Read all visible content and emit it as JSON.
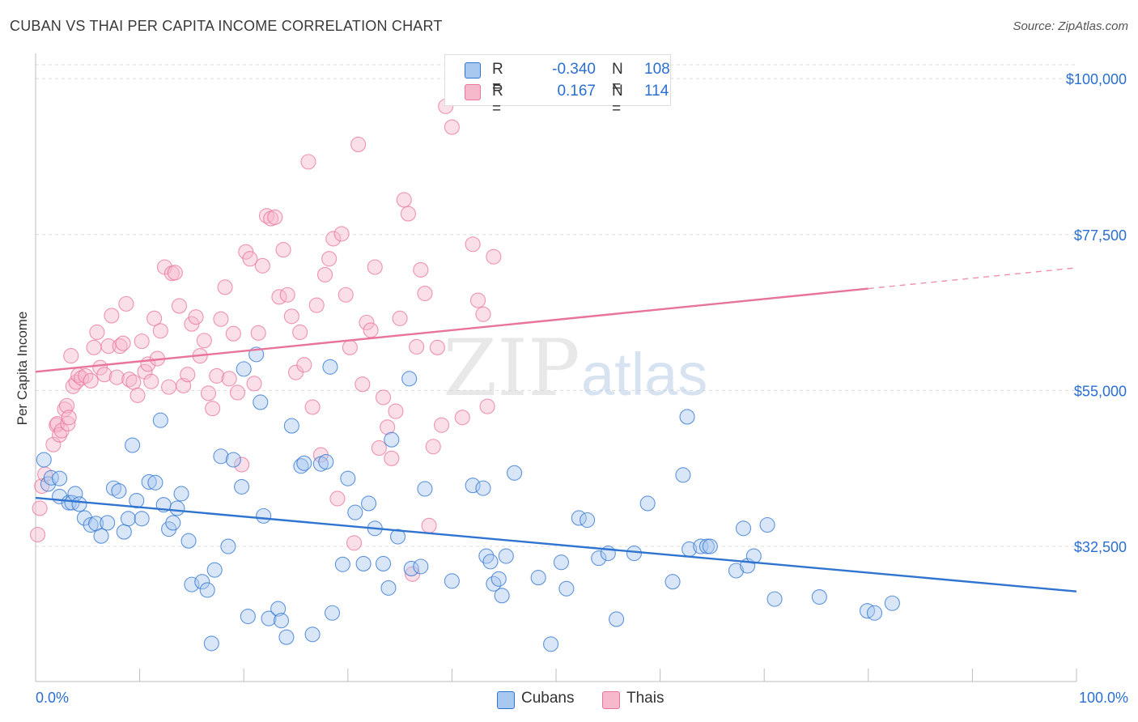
{
  "title": "CUBAN VS THAI PER CAPITA INCOME CORRELATION CHART",
  "source": "Source: ZipAtlas.com",
  "watermark": {
    "zip": "ZIP",
    "atlas": "atlas"
  },
  "legend": {
    "rows": [
      {
        "r_label": "R =",
        "r_value": "-0.340",
        "n_label": "N =",
        "n_value": "108",
        "color": "#a9c8f0"
      },
      {
        "r_label": "R =",
        "r_value": "0.167",
        "n_label": "N =",
        "n_value": "114",
        "color": "#f6b9cc"
      }
    ]
  },
  "bottom_legend": [
    {
      "label": "Cubans",
      "color": "#a9c8f0"
    },
    {
      "label": "Thais",
      "color": "#f6b9cc"
    }
  ],
  "chart_data": {
    "type": "scatter",
    "ylabel": "Per Capita Income",
    "xlim": [
      0,
      100
    ],
    "ylim": [
      13000,
      102000
    ],
    "x_tick_labels": {
      "min": "0.0%",
      "max": "100.0%"
    },
    "y_ticks": [
      {
        "value": 32500,
        "label": "$32,500"
      },
      {
        "value": 55000,
        "label": "$55,000"
      },
      {
        "value": 77500,
        "label": "$77,500"
      },
      {
        "value": 100000,
        "label": "$100,000"
      }
    ],
    "grid": "horizontal dashed",
    "series": [
      {
        "name": "Cubans",
        "color": "#2f74d0",
        "fill": "#a9c8f0",
        "trend": {
          "x0": 0,
          "y0": 39500,
          "x1": 100,
          "y1": 26000
        },
        "points": [
          [
            0.8,
            45000
          ],
          [
            1.2,
            41500
          ],
          [
            1.5,
            42400
          ],
          [
            2.3,
            39700
          ],
          [
            2.3,
            42300
          ],
          [
            3.2,
            38800
          ],
          [
            3.5,
            38800
          ],
          [
            3.8,
            40100
          ],
          [
            4.2,
            38600
          ],
          [
            4.7,
            36600
          ],
          [
            5.3,
            35600
          ],
          [
            5.8,
            35800
          ],
          [
            6.3,
            34000
          ],
          [
            6.9,
            35900
          ],
          [
            7.5,
            40900
          ],
          [
            8.0,
            40500
          ],
          [
            8.5,
            34600
          ],
          [
            8.9,
            36500
          ],
          [
            9.3,
            47100
          ],
          [
            9.7,
            39100
          ],
          [
            10.2,
            36500
          ],
          [
            10.9,
            41800
          ],
          [
            11.5,
            41700
          ],
          [
            12.0,
            50700
          ],
          [
            12.3,
            38500
          ],
          [
            12.8,
            35000
          ],
          [
            13.2,
            35900
          ],
          [
            13.6,
            38000
          ],
          [
            14.0,
            40100
          ],
          [
            14.7,
            33300
          ],
          [
            15.0,
            27000
          ],
          [
            16.0,
            27400
          ],
          [
            16.5,
            26200
          ],
          [
            16.9,
            18500
          ],
          [
            17.2,
            29100
          ],
          [
            17.8,
            45500
          ],
          [
            18.5,
            32500
          ],
          [
            19.0,
            45000
          ],
          [
            19.8,
            41100
          ],
          [
            20.0,
            58100
          ],
          [
            20.4,
            22400
          ],
          [
            21.2,
            60200
          ],
          [
            21.6,
            53300
          ],
          [
            21.9,
            36900
          ],
          [
            22.4,
            22100
          ],
          [
            23.3,
            23500
          ],
          [
            23.6,
            21800
          ],
          [
            24.1,
            19400
          ],
          [
            24.6,
            49900
          ],
          [
            25.5,
            44100
          ],
          [
            25.8,
            44500
          ],
          [
            26.6,
            19800
          ],
          [
            27.4,
            44400
          ],
          [
            27.9,
            44700
          ],
          [
            28.3,
            58400
          ],
          [
            28.5,
            22900
          ],
          [
            29.5,
            29900
          ],
          [
            30.0,
            42300
          ],
          [
            30.7,
            37400
          ],
          [
            31.5,
            30000
          ],
          [
            32.0,
            38700
          ],
          [
            32.6,
            35100
          ],
          [
            33.4,
            30000
          ],
          [
            33.9,
            26500
          ],
          [
            34.2,
            47900
          ],
          [
            34.8,
            33900
          ],
          [
            35.9,
            56700
          ],
          [
            36.1,
            29300
          ],
          [
            37.0,
            29600
          ],
          [
            37.4,
            40800
          ],
          [
            40.0,
            27500
          ],
          [
            42.0,
            41300
          ],
          [
            43.0,
            40900
          ],
          [
            43.3,
            31100
          ],
          [
            43.7,
            30300
          ],
          [
            44.0,
            27100
          ],
          [
            44.5,
            27800
          ],
          [
            44.8,
            25400
          ],
          [
            45.2,
            31100
          ],
          [
            46.0,
            43100
          ],
          [
            48.3,
            28000
          ],
          [
            49.5,
            18400
          ],
          [
            50.5,
            30200
          ],
          [
            51.0,
            26400
          ],
          [
            52.2,
            36600
          ],
          [
            53.0,
            36300
          ],
          [
            54.1,
            30800
          ],
          [
            55.0,
            31500
          ],
          [
            55.8,
            22000
          ],
          [
            57.5,
            31500
          ],
          [
            58.8,
            38700
          ],
          [
            61.2,
            27400
          ],
          [
            62.2,
            42800
          ],
          [
            62.6,
            51200
          ],
          [
            62.8,
            32100
          ],
          [
            63.9,
            32500
          ],
          [
            64.5,
            32500
          ],
          [
            64.8,
            32500
          ],
          [
            67.3,
            29000
          ],
          [
            68.0,
            35100
          ],
          [
            68.4,
            29700
          ],
          [
            69.0,
            31100
          ],
          [
            70.3,
            35600
          ],
          [
            71.0,
            24900
          ],
          [
            75.3,
            25200
          ],
          [
            79.9,
            23200
          ],
          [
            80.6,
            22900
          ],
          [
            82.3,
            24300
          ]
        ]
      },
      {
        "name": "Thais",
        "color": "#e8739b",
        "fill": "#f6b9cc",
        "trend": {
          "x0": 0,
          "y0": 57700,
          "x1": 80,
          "y1": 69700
        },
        "trend_ext": {
          "x0": 80,
          "y0": 69700,
          "x1": 100,
          "y1": 72700
        },
        "points": [
          [
            0.2,
            34200
          ],
          [
            0.4,
            38000
          ],
          [
            0.6,
            41200
          ],
          [
            0.9,
            42900
          ],
          [
            1.7,
            47200
          ],
          [
            2.0,
            50000
          ],
          [
            2.1,
            50200
          ],
          [
            2.3,
            48600
          ],
          [
            2.5,
            49200
          ],
          [
            2.8,
            52300
          ],
          [
            3.0,
            52800
          ],
          [
            3.1,
            50200
          ],
          [
            3.2,
            51100
          ],
          [
            3.4,
            60000
          ],
          [
            3.6,
            55600
          ],
          [
            3.9,
            56200
          ],
          [
            4.1,
            57200
          ],
          [
            4.4,
            56800
          ],
          [
            4.8,
            57100
          ],
          [
            5.3,
            56400
          ],
          [
            5.6,
            61200
          ],
          [
            5.9,
            63400
          ],
          [
            6.2,
            58300
          ],
          [
            6.6,
            57300
          ],
          [
            7.0,
            61400
          ],
          [
            7.3,
            65800
          ],
          [
            7.8,
            56900
          ],
          [
            8.1,
            61400
          ],
          [
            8.4,
            61800
          ],
          [
            8.7,
            67500
          ],
          [
            9.0,
            56600
          ],
          [
            9.4,
            56200
          ],
          [
            9.8,
            54300
          ],
          [
            10.2,
            62100
          ],
          [
            10.5,
            57700
          ],
          [
            10.8,
            58800
          ],
          [
            11.1,
            56300
          ],
          [
            11.4,
            65400
          ],
          [
            11.7,
            59600
          ],
          [
            12.0,
            63600
          ],
          [
            12.4,
            72800
          ],
          [
            12.8,
            55500
          ],
          [
            13.1,
            71900
          ],
          [
            13.4,
            72000
          ],
          [
            13.8,
            67200
          ],
          [
            14.2,
            55700
          ],
          [
            14.6,
            57300
          ],
          [
            15.0,
            64600
          ],
          [
            15.4,
            65600
          ],
          [
            15.8,
            60000
          ],
          [
            16.2,
            62200
          ],
          [
            16.6,
            54600
          ],
          [
            17.0,
            52400
          ],
          [
            17.4,
            57100
          ],
          [
            17.8,
            65300
          ],
          [
            18.2,
            69900
          ],
          [
            18.6,
            56700
          ],
          [
            19.0,
            63200
          ],
          [
            19.4,
            54700
          ],
          [
            19.8,
            44300
          ],
          [
            20.2,
            75000
          ],
          [
            20.6,
            74000
          ],
          [
            21.0,
            56000
          ],
          [
            21.4,
            63300
          ],
          [
            21.8,
            73000
          ],
          [
            22.2,
            80200
          ],
          [
            22.6,
            79800
          ],
          [
            23.0,
            80000
          ],
          [
            23.4,
            68500
          ],
          [
            23.8,
            75300
          ],
          [
            24.2,
            68800
          ],
          [
            24.6,
            65700
          ],
          [
            25.0,
            57600
          ],
          [
            25.4,
            63400
          ],
          [
            25.8,
            58700
          ],
          [
            26.2,
            88000
          ],
          [
            26.6,
            52600
          ],
          [
            27.0,
            67300
          ],
          [
            27.4,
            45700
          ],
          [
            27.8,
            71700
          ],
          [
            28.2,
            74000
          ],
          [
            28.6,
            76900
          ],
          [
            29.0,
            39400
          ],
          [
            29.4,
            77600
          ],
          [
            29.8,
            68800
          ],
          [
            30.2,
            61200
          ],
          [
            30.6,
            33000
          ],
          [
            31.0,
            90500
          ],
          [
            31.4,
            55900
          ],
          [
            31.8,
            64800
          ],
          [
            32.2,
            63700
          ],
          [
            32.6,
            72800
          ],
          [
            33.0,
            46700
          ],
          [
            33.4,
            54000
          ],
          [
            33.8,
            49700
          ],
          [
            34.2,
            45200
          ],
          [
            34.6,
            52000
          ],
          [
            35.0,
            65400
          ],
          [
            35.4,
            82500
          ],
          [
            35.8,
            80500
          ],
          [
            36.2,
            28500
          ],
          [
            36.6,
            61300
          ],
          [
            37.0,
            72400
          ],
          [
            37.4,
            69000
          ],
          [
            37.8,
            35500
          ],
          [
            38.2,
            46900
          ],
          [
            38.6,
            61200
          ],
          [
            39.0,
            50000
          ],
          [
            39.4,
            96000
          ],
          [
            40.0,
            93000
          ],
          [
            41.0,
            51100
          ],
          [
            42.0,
            76100
          ],
          [
            42.5,
            68000
          ],
          [
            43.0,
            66000
          ],
          [
            43.4,
            52700
          ],
          [
            44.0,
            74300
          ]
        ]
      }
    ]
  }
}
